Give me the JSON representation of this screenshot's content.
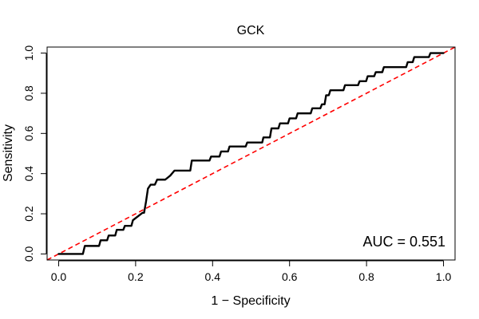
{
  "chart_data": {
    "type": "line",
    "title": "GCK",
    "xlabel": "1 − Specificity",
    "ylabel": "Sensitivity",
    "xlim": [
      -0.03,
      1.03
    ],
    "ylim": [
      -0.03,
      1.03
    ],
    "grid": false,
    "x_ticks": [
      0.0,
      0.2,
      0.4,
      0.6,
      0.8,
      1.0
    ],
    "x_tick_labels": [
      "0.0",
      "0.2",
      "0.4",
      "0.6",
      "0.8",
      "1.0"
    ],
    "y_ticks": [
      0.0,
      0.2,
      0.4,
      0.6,
      0.8,
      1.0
    ],
    "y_tick_labels": [
      "0.0",
      "0.2",
      "0.4",
      "0.6",
      "0.8",
      "1.0"
    ],
    "annotation": "AUC = 0.551",
    "colors": {
      "roc_curve": "#000000",
      "reference_line": "#ff0000"
    },
    "reference_line": {
      "x": [
        0,
        1
      ],
      "y": [
        0,
        1
      ],
      "style": "dashed"
    },
    "series": [
      {
        "x": [
          0.0,
          0.063,
          0.068,
          0.105,
          0.109,
          0.126,
          0.13,
          0.147,
          0.151,
          0.168,
          0.172,
          0.189,
          0.193,
          0.218,
          0.222,
          0.227,
          0.232,
          0.239,
          0.25,
          0.256,
          0.277,
          0.29,
          0.301,
          0.342,
          0.346,
          0.392,
          0.396,
          0.418,
          0.422,
          0.44,
          0.444,
          0.486,
          0.49,
          0.529,
          0.532,
          0.549,
          0.553,
          0.571,
          0.575,
          0.596,
          0.6,
          0.617,
          0.621,
          0.655,
          0.659,
          0.68,
          0.684,
          0.691,
          0.695,
          0.702,
          0.706,
          0.74,
          0.744,
          0.778,
          0.782,
          0.799,
          0.803,
          0.82,
          0.824,
          0.841,
          0.845,
          0.903,
          0.907,
          0.92,
          0.924,
          0.962,
          0.966,
          1.0
        ],
        "y": [
          0.0,
          0.0,
          0.04,
          0.04,
          0.068,
          0.068,
          0.092,
          0.092,
          0.12,
          0.12,
          0.14,
          0.14,
          0.168,
          0.205,
          0.205,
          0.26,
          0.325,
          0.345,
          0.345,
          0.37,
          0.37,
          0.39,
          0.415,
          0.415,
          0.465,
          0.465,
          0.485,
          0.485,
          0.51,
          0.51,
          0.535,
          0.535,
          0.555,
          0.555,
          0.58,
          0.58,
          0.625,
          0.625,
          0.65,
          0.65,
          0.675,
          0.675,
          0.7,
          0.7,
          0.725,
          0.725,
          0.745,
          0.745,
          0.79,
          0.79,
          0.815,
          0.815,
          0.84,
          0.84,
          0.86,
          0.86,
          0.885,
          0.885,
          0.905,
          0.905,
          0.93,
          0.93,
          0.955,
          0.955,
          0.98,
          0.98,
          1.0,
          1.0
        ]
      }
    ]
  }
}
